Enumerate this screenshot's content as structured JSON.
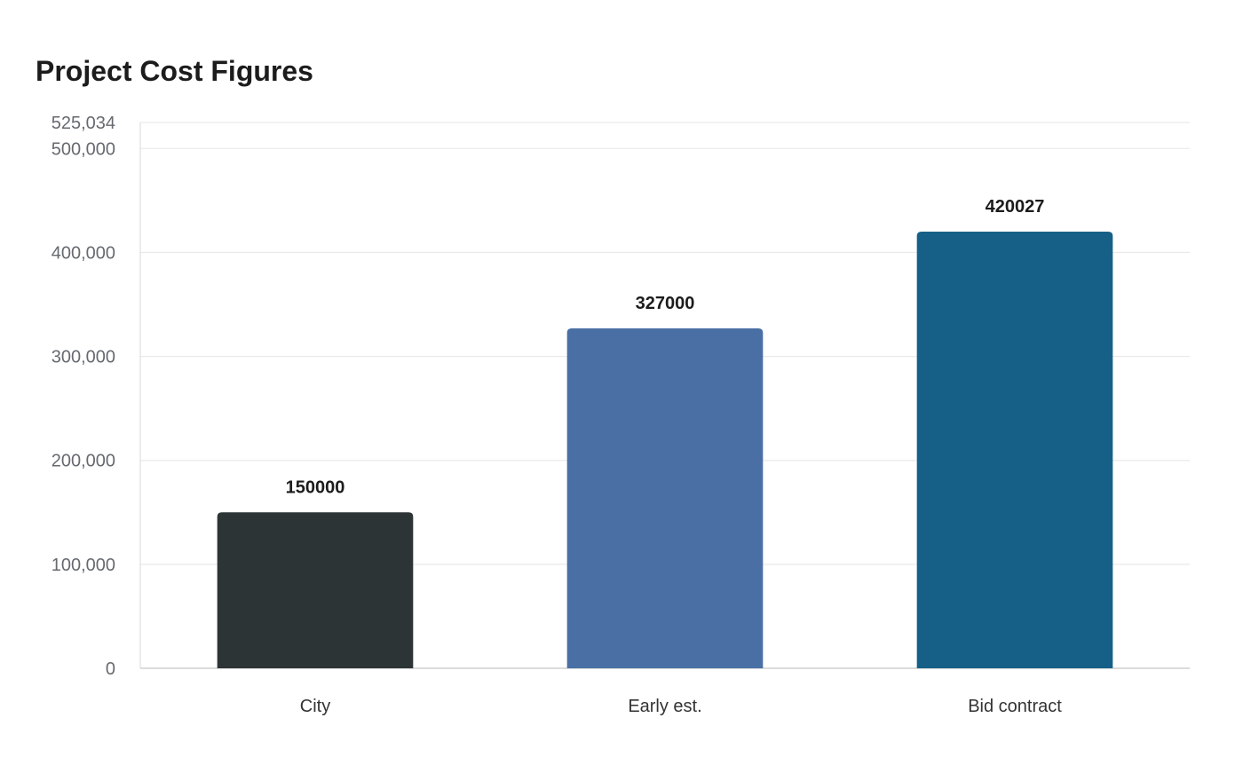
{
  "chart_data": {
    "type": "bar",
    "title": "Project Cost Figures",
    "xlabel": "",
    "ylabel": "",
    "categories": [
      "City",
      "Early est.",
      "Bid contract"
    ],
    "values": [
      150000,
      327000,
      420027
    ],
    "value_labels": [
      "150000",
      "327000",
      "420027"
    ],
    "colors": [
      "#2d3436",
      "#4a6fa5",
      "#166088"
    ],
    "ylim": [
      0,
      525034
    ],
    "yticks": [
      0,
      100000,
      200000,
      300000,
      400000,
      500000,
      525034
    ],
    "ytick_labels": [
      "0",
      "100,000",
      "200,000",
      "300,000",
      "400,000",
      "500,000",
      "525,034"
    ],
    "grid": true,
    "legend": "none"
  }
}
